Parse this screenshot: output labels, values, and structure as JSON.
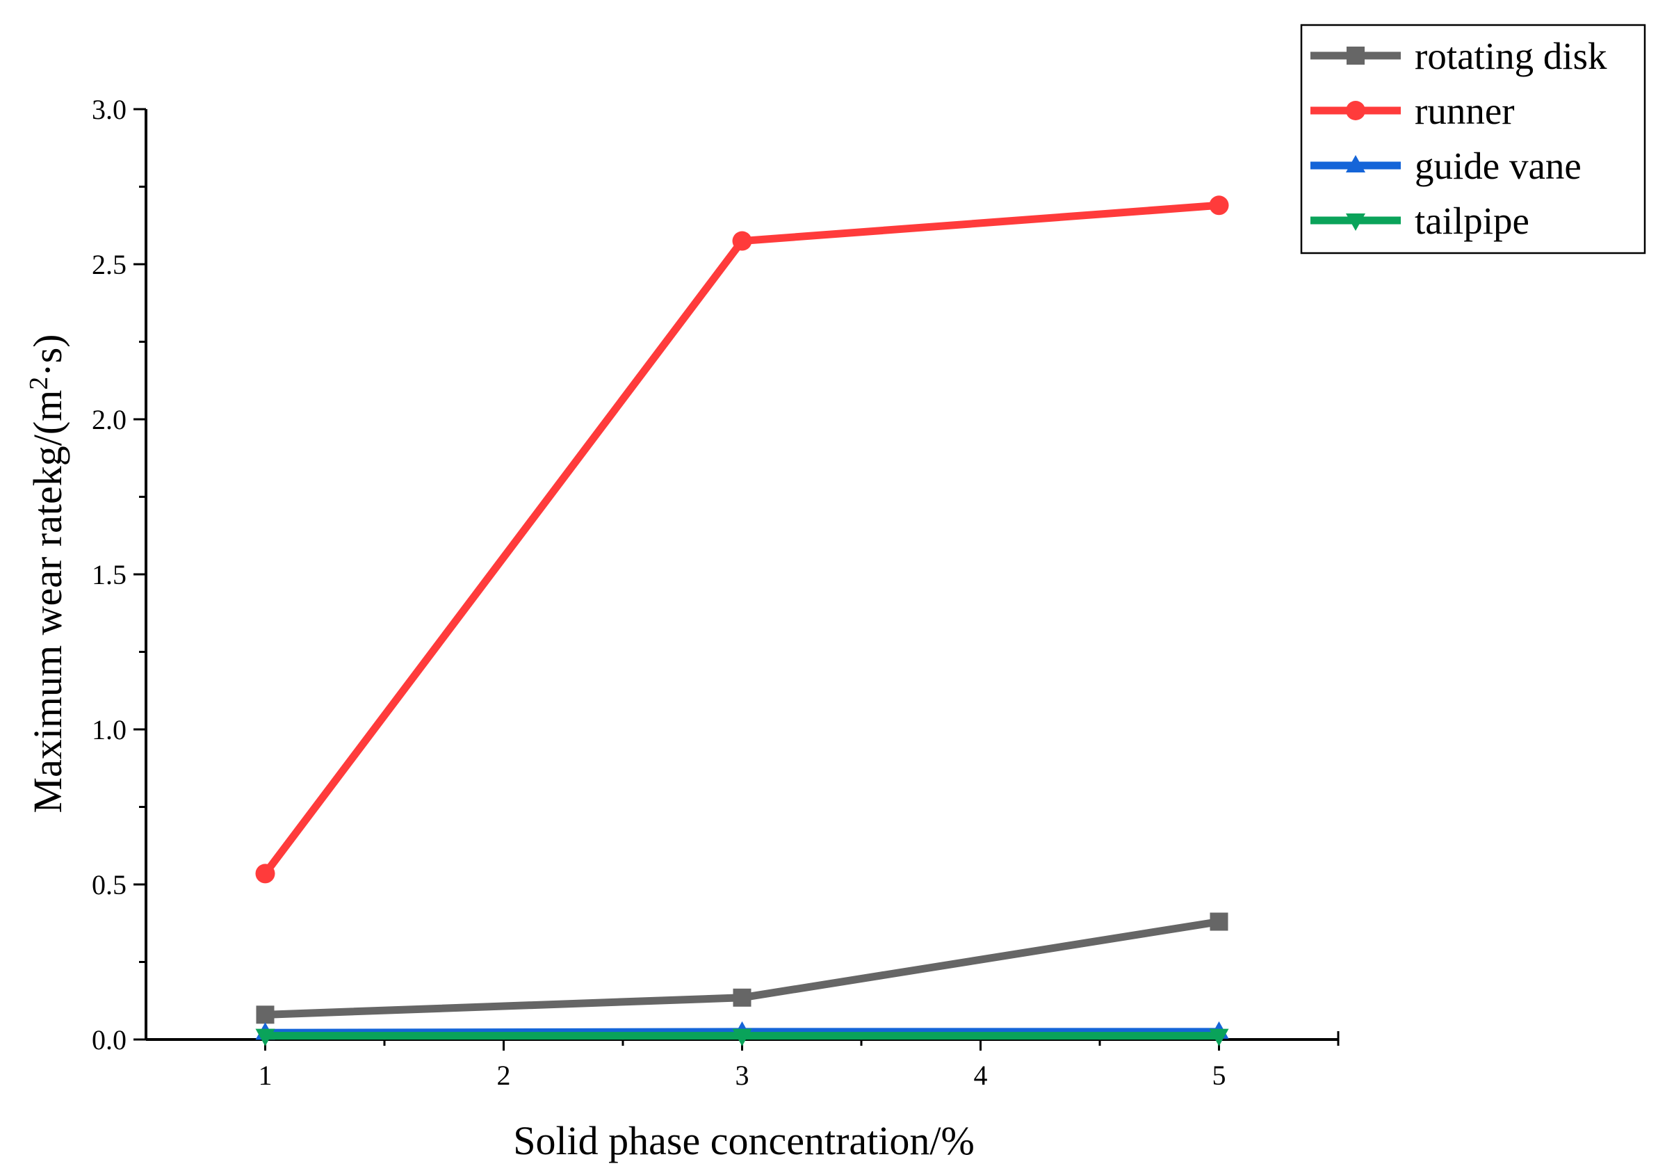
{
  "chart_data": {
    "type": "line",
    "title": "",
    "xlabel": "Solid phase concentration/%",
    "ylabel": {
      "prefix": "Maximum wear rate",
      "unit_start": "kg/(m",
      "superscript": "2",
      "unit_end": "·s)"
    },
    "x": [
      1,
      3,
      5
    ],
    "xlim": [
      0.5,
      5.5
    ],
    "ylim": [
      0,
      3.0
    ],
    "xticks": [
      1,
      2,
      3,
      4,
      5
    ],
    "yticks": [
      0.0,
      0.5,
      1.0,
      1.5,
      2.0,
      2.5,
      3.0
    ],
    "ytick_labels": [
      "0.0",
      "0.5",
      "1.0",
      "1.5",
      "2.0",
      "2.5",
      "3.0"
    ],
    "grid": false,
    "legend_position": "top-right, outside plot",
    "series": [
      {
        "name": "rotating disk",
        "color": "#666666",
        "marker": "square",
        "values": [
          0.08,
          0.135,
          0.38
        ]
      },
      {
        "name": "runner",
        "color": "#ff3b3b",
        "marker": "circle",
        "values": [
          0.535,
          2.575,
          2.69
        ]
      },
      {
        "name": "guide vane",
        "color": "#1565d8",
        "marker": "triangle-up",
        "values": [
          0.022,
          0.025,
          0.025
        ]
      },
      {
        "name": "tailpipe",
        "color": "#0aa35a",
        "marker": "triangle-down",
        "values": [
          0.012,
          0.012,
          0.012
        ]
      }
    ]
  }
}
